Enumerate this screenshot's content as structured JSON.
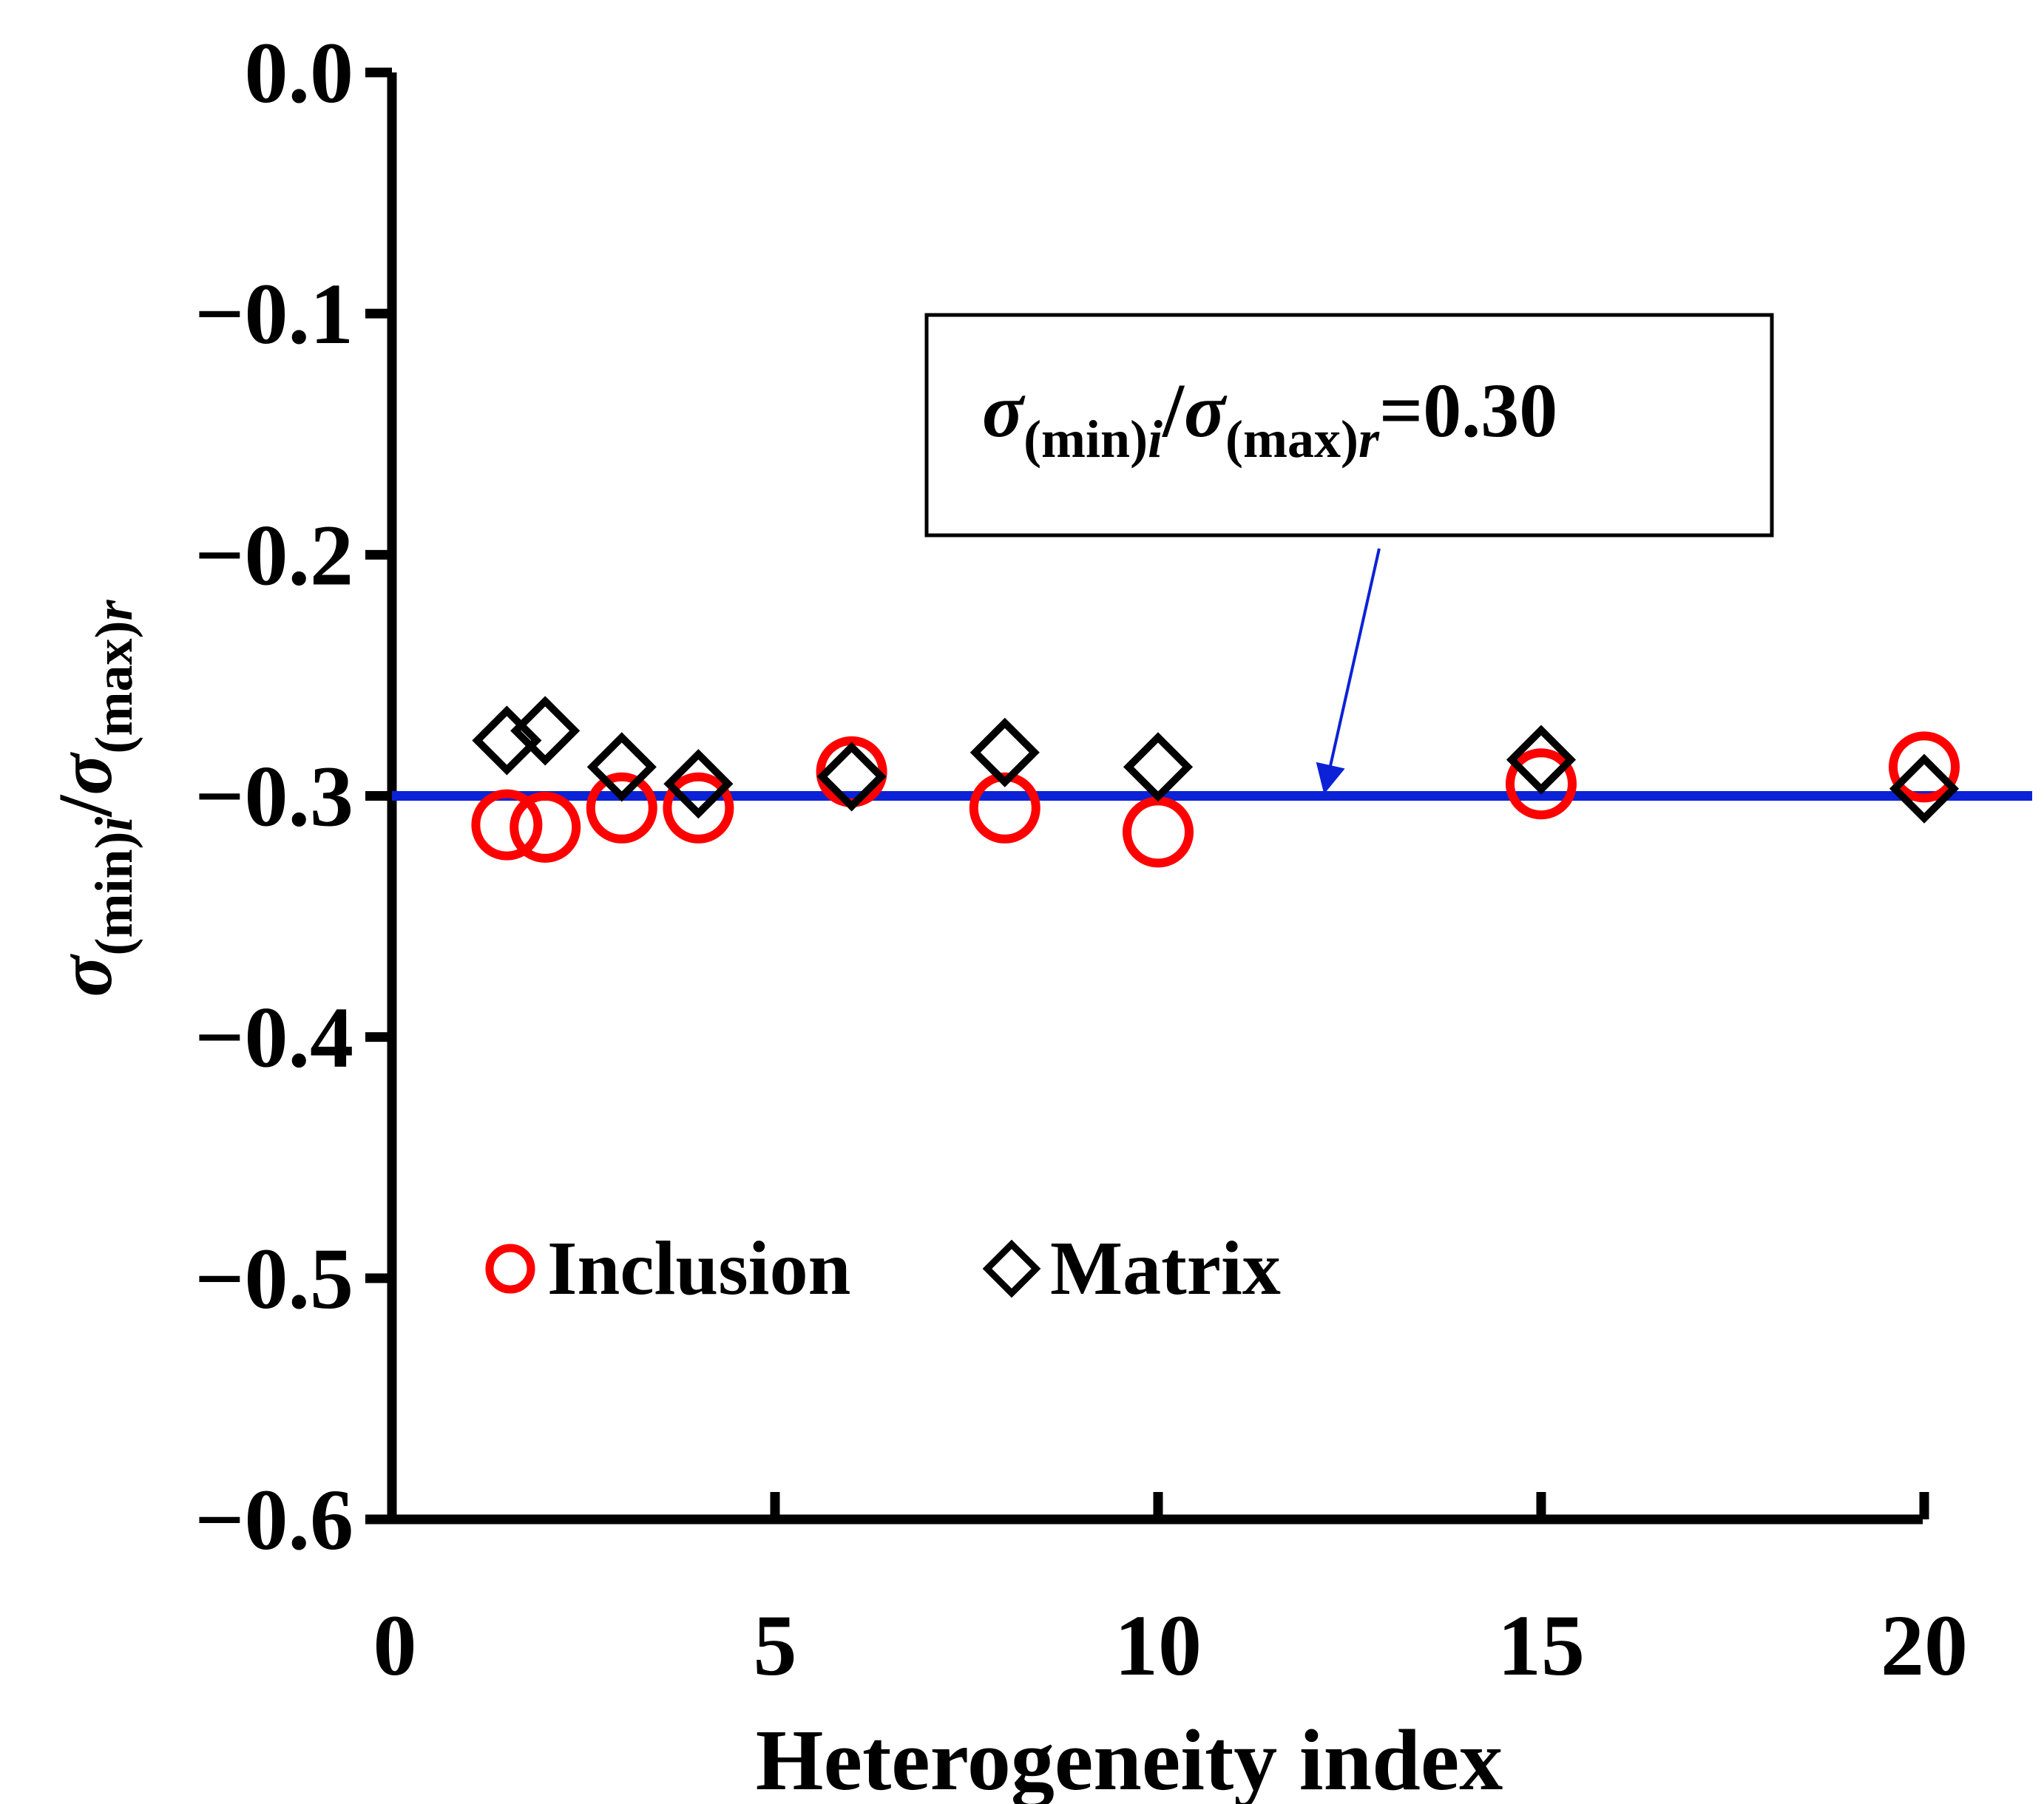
{
  "chart_data": {
    "type": "scatter",
    "xlabel": "Heterogeneity index",
    "ylabel": {
      "sigma": "σ",
      "sub_min": "(min)",
      "sub_i": "i",
      "slash": "/",
      "sub_max": "(max)",
      "sub_r": "r"
    },
    "xlim": [
      0,
      20
    ],
    "ylim": [
      -0.6,
      0.0
    ],
    "x_ticks": [
      0,
      5,
      10,
      15,
      20
    ],
    "x_tick_labels": [
      "0",
      "5",
      "10",
      "15",
      "20"
    ],
    "y_ticks": [
      0.0,
      -0.1,
      -0.2,
      -0.3,
      -0.4,
      -0.5,
      -0.6
    ],
    "y_tick_labels": [
      "0.0",
      "−0.1",
      "−0.2",
      "−0.3",
      "−0.4",
      "−0.5",
      "−0.6"
    ],
    "grid": false,
    "legend_position": "lower-left",
    "series": [
      {
        "name": "Inclusion",
        "marker": "circle",
        "color": "#ff0000",
        "points": [
          {
            "x": 1.5,
            "y": -0.312
          },
          {
            "x": 2.0,
            "y": -0.313
          },
          {
            "x": 3.0,
            "y": -0.305
          },
          {
            "x": 4.0,
            "y": -0.305
          },
          {
            "x": 6.0,
            "y": -0.29
          },
          {
            "x": 8.0,
            "y": -0.305
          },
          {
            "x": 10.0,
            "y": -0.315
          },
          {
            "x": 15.0,
            "y": -0.295
          },
          {
            "x": 20.0,
            "y": -0.288
          }
        ]
      },
      {
        "name": "Matrix",
        "marker": "diamond",
        "color": "#000000",
        "points": [
          {
            "x": 1.5,
            "y": -0.277
          },
          {
            "x": 2.0,
            "y": -0.273
          },
          {
            "x": 3.0,
            "y": -0.288
          },
          {
            "x": 4.0,
            "y": -0.295
          },
          {
            "x": 6.0,
            "y": -0.292
          },
          {
            "x": 8.0,
            "y": -0.282
          },
          {
            "x": 10.0,
            "y": -0.288
          },
          {
            "x": 15.0,
            "y": -0.285
          },
          {
            "x": 20.0,
            "y": -0.297
          }
        ]
      }
    ],
    "reference_line": {
      "y": -0.3,
      "color": "#0b22d6"
    },
    "annotation": {
      "sigma": "σ",
      "sub_min": "(min)",
      "sub_i": "i",
      "slash": "/",
      "sub_max": "(max)",
      "sub_r": "r",
      "value": "=0.30",
      "arrow_target_x": 12.2,
      "arrow_target_y": -0.3,
      "arrow_color": "#0b22d6"
    }
  }
}
